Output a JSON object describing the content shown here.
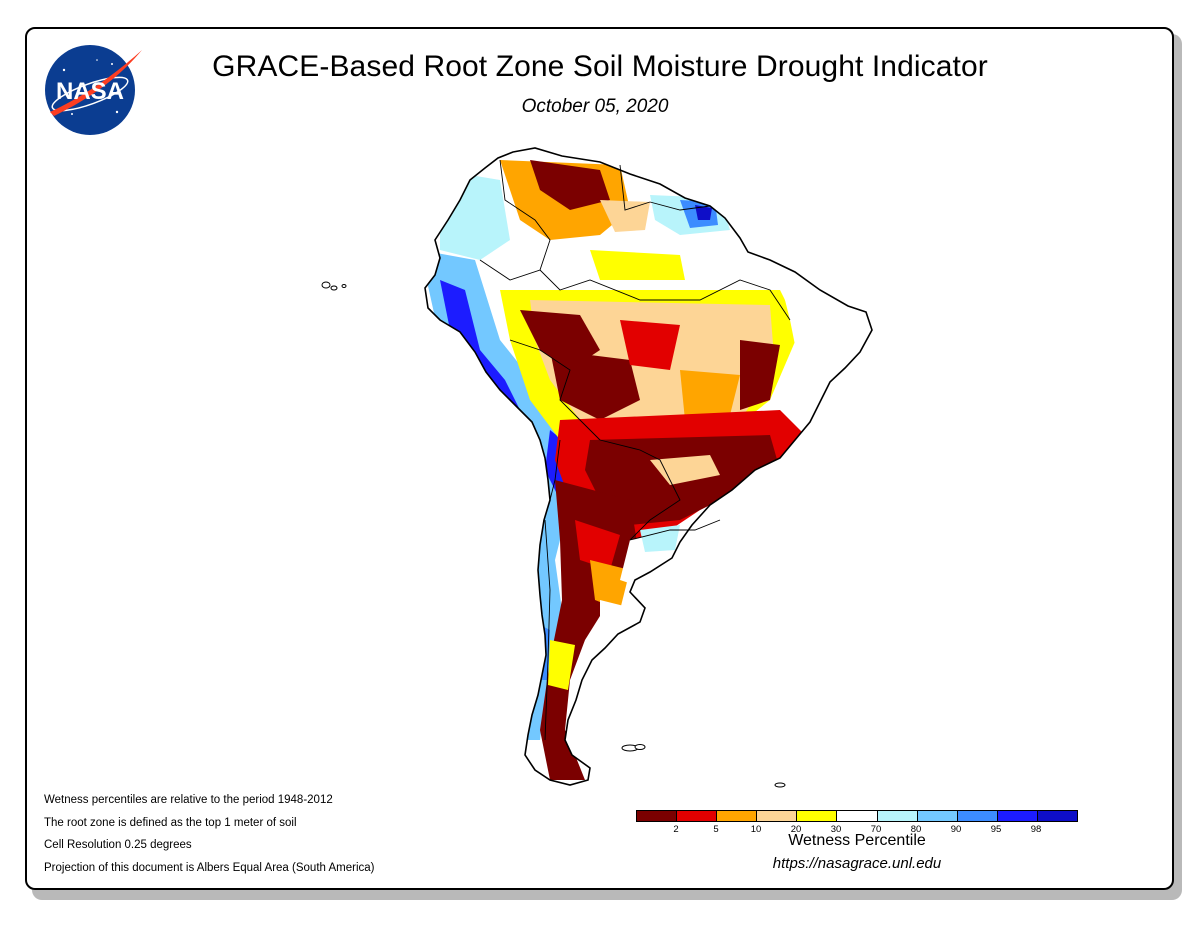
{
  "header": {
    "title": "GRACE-Based Root Zone Soil Moisture Drought Indicator",
    "date": "October 05, 2020"
  },
  "logo": {
    "text": "NASA",
    "icon": "nasa-meatball-icon"
  },
  "map": {
    "region": "South America",
    "icon": "south-america-map"
  },
  "notes": [
    "Wetness percentiles are relative to the period 1948-2012",
    "The root zone is defined as the top 1 meter of soil",
    "Cell Resolution 0.25 degrees",
    "Projection of this document is Albers Equal Area (South America)"
  ],
  "legend": {
    "title": "Wetness Percentile",
    "colors": [
      "#7b0000",
      "#e20000",
      "#ffa500",
      "#fdd596",
      "#ffff00",
      "#ffffff",
      "#b8f4fb",
      "#73c8ff",
      "#3c8cff",
      "#1c1cff",
      "#0e0ec8"
    ],
    "ticks": [
      "2",
      "5",
      "10",
      "20",
      "30",
      "70",
      "80",
      "90",
      "95",
      "98"
    ]
  },
  "footer": {
    "url": "https://nasagrace.unl.edu"
  }
}
